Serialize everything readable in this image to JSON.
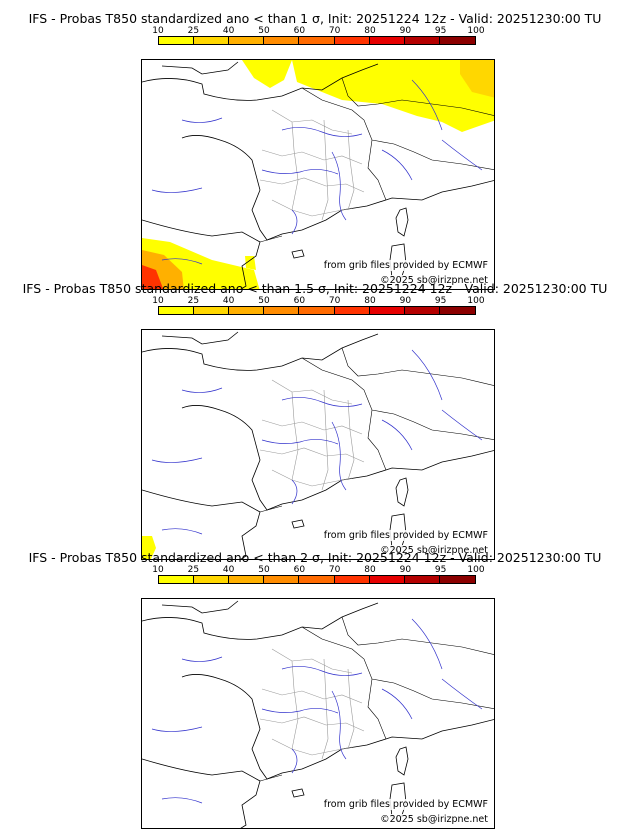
{
  "colorbar": {
    "ticks": [
      "10",
      "25",
      "40",
      "50",
      "60",
      "70",
      "80",
      "90",
      "95",
      "100"
    ],
    "colors": [
      "#ffff00",
      "#ffd700",
      "#ffb000",
      "#ff8c00",
      "#ff6a00",
      "#ff3300",
      "#e60000",
      "#b40000",
      "#8b0000"
    ]
  },
  "credits": {
    "source": "from grib files provided by ECMWF",
    "copyright": "©2025 sb@irizpne.net"
  },
  "panels": [
    {
      "title": "IFS - Probas T850  standardized ano < than 1 σ, Init: 20251224 12z - Valid: 20251230:00 TU"
    },
    {
      "title": "IFS - Probas T850  standardized ano < than 1.5 σ, Init: 20251224 12z - Valid: 20251230:00 TU"
    },
    {
      "title": "IFS - Probas T850  standardized ano < than 2 σ, Init: 20251224 12z - Valid: 20251230:00 TU"
    }
  ]
}
